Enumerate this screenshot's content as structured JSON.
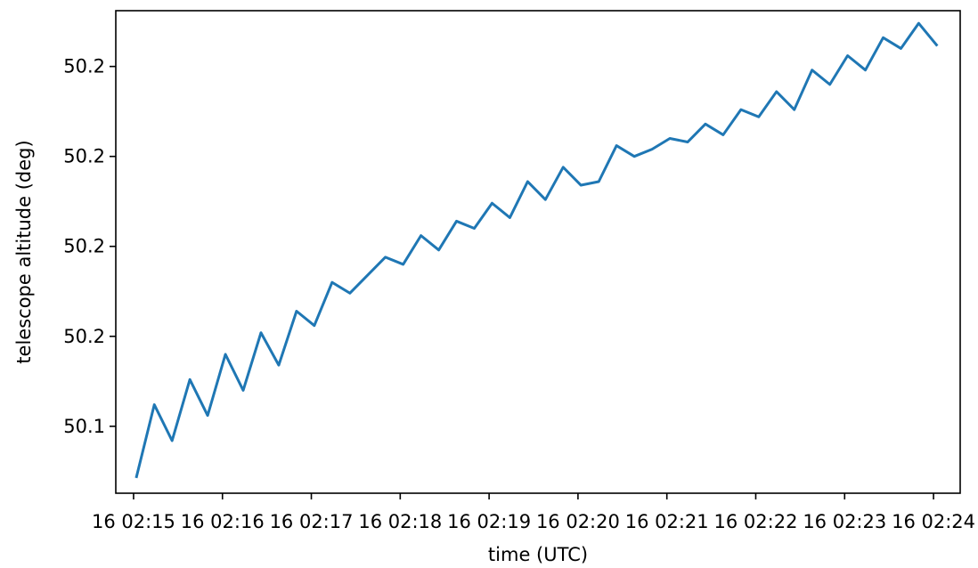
{
  "chart_data": {
    "type": "line",
    "title": "",
    "xlabel": "time (UTC)",
    "ylabel": "telescope altitude (deg)",
    "xlim": [
      "16 02:14:48",
      "16 02:24:18"
    ],
    "ylim": [
      50.0814,
      50.2155
    ],
    "grid": false,
    "x_ticks": [
      {
        "value": "16 02:15",
        "label": "16 02:15"
      },
      {
        "value": "16 02:16",
        "label": "16 02:16"
      },
      {
        "value": "16 02:17",
        "label": "16 02:17"
      },
      {
        "value": "16 02:18",
        "label": "16 02:18"
      },
      {
        "value": "16 02:19",
        "label": "16 02:19"
      },
      {
        "value": "16 02:20",
        "label": "16 02:20"
      },
      {
        "value": "16 02:21",
        "label": "16 02:21"
      },
      {
        "value": "16 02:22",
        "label": "16 02:22"
      },
      {
        "value": "16 02:23",
        "label": "16 02:23"
      },
      {
        "value": "16 02:24",
        "label": "16 02:24"
      }
    ],
    "y_ticks": [
      {
        "value": 50.1,
        "label": "50.1"
      },
      {
        "value": 50.125,
        "label": "50.2"
      },
      {
        "value": 50.15,
        "label": "50.2"
      },
      {
        "value": 50.175,
        "label": "50.2"
      },
      {
        "value": 50.2,
        "label": "50.2"
      },
      {
        "value": 50.225,
        "label": "50.2"
      }
    ],
    "series": [
      {
        "color": "#1f77b4",
        "x": [
          "16 02:15:02",
          "16 02:15:14",
          "16 02:15:26",
          "16 02:15:38",
          "16 02:15:50",
          "16 02:16:02",
          "16 02:16:14",
          "16 02:16:26",
          "16 02:16:38",
          "16 02:16:50",
          "16 02:17:02",
          "16 02:17:14",
          "16 02:17:26",
          "16 02:17:38",
          "16 02:17:50",
          "16 02:18:02",
          "16 02:18:14",
          "16 02:18:26",
          "16 02:18:38",
          "16 02:18:50",
          "16 02:19:02",
          "16 02:19:14",
          "16 02:19:26",
          "16 02:19:38",
          "16 02:19:50",
          "16 02:20:02",
          "16 02:20:14",
          "16 02:20:26",
          "16 02:20:38",
          "16 02:20:50",
          "16 02:21:02",
          "16 02:21:14",
          "16 02:21:26",
          "16 02:21:38",
          "16 02:21:50",
          "16 02:22:02",
          "16 02:22:14",
          "16 02:22:26",
          "16 02:22:38",
          "16 02:22:50",
          "16 02:23:02",
          "16 02:23:14",
          "16 02:23:26",
          "16 02:23:38",
          "16 02:23:50",
          "16 02:24:02"
        ],
        "y": [
          50.086,
          50.106,
          50.096,
          50.113,
          50.103,
          50.12,
          50.11,
          50.126,
          50.117,
          50.132,
          50.128,
          50.14,
          50.137,
          50.142,
          50.147,
          50.145,
          50.153,
          50.149,
          50.157,
          50.155,
          50.162,
          50.158,
          50.168,
          50.163,
          50.172,
          50.167,
          50.168,
          50.178,
          50.175,
          50.177,
          50.18,
          50.179,
          50.184,
          50.181,
          50.188,
          50.186,
          50.193,
          50.188,
          50.199,
          50.195,
          50.203,
          50.199,
          50.208,
          50.205,
          50.212,
          50.206
        ]
      }
    ]
  }
}
